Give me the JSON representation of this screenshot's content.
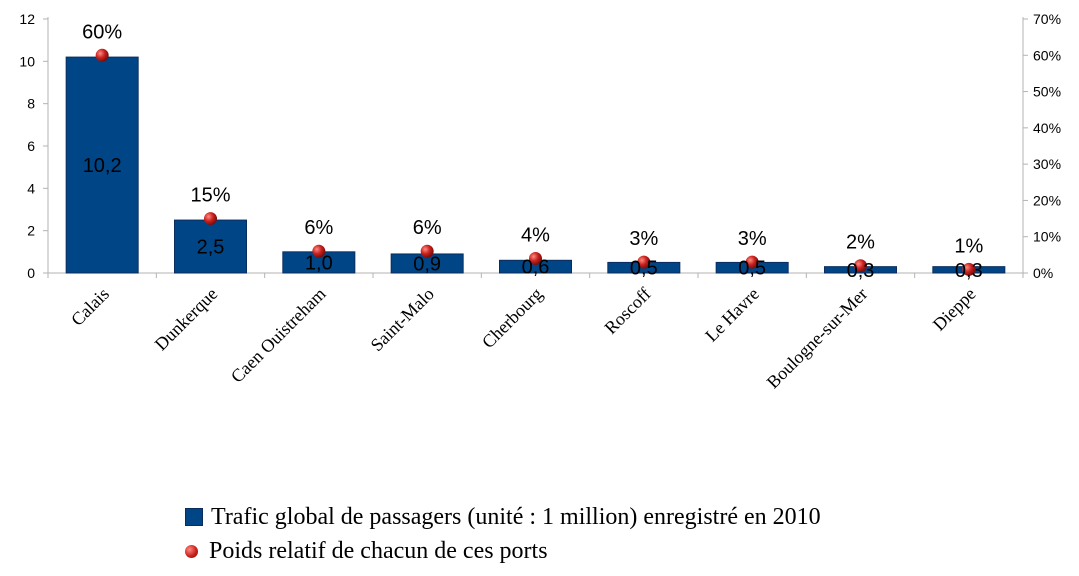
{
  "chart_data": {
    "type": "bar",
    "categories": [
      "Calais",
      "Dunkerque",
      "Caen Ouistreham",
      "Saint-Malo",
      "Cherbourg",
      "Roscoff",
      "Le Havre",
      "Boulogne-sur-Mer",
      "Dieppe"
    ],
    "series": [
      {
        "name": "Trafic global de passagers (unité : 1 million) enregistré en 2010",
        "type": "bar",
        "axis": "left",
        "values": [
          10.2,
          2.5,
          1.0,
          0.9,
          0.6,
          0.5,
          0.5,
          0.3,
          0.3
        ],
        "labels": [
          "10,2",
          "2,5",
          "1,0",
          "0,9",
          "0,6",
          "0,5",
          "0,5",
          "0,3",
          "0,3"
        ],
        "color": "#004586"
      },
      {
        "name": "Poids relatif de chacun de ces ports",
        "type": "scatter",
        "axis": "right",
        "values": [
          60,
          15,
          6,
          6,
          4,
          3,
          3,
          2,
          1
        ],
        "labels": [
          "60%",
          "15%",
          "6%",
          "6%",
          "4%",
          "3%",
          "3%",
          "2%",
          "1%"
        ],
        "color": "#c9211e"
      }
    ],
    "y_left": {
      "ylim": [
        0,
        12
      ],
      "ticks": [
        "0",
        "2",
        "4",
        "6",
        "8",
        "10",
        "12"
      ]
    },
    "y_right": {
      "ylim": [
        0,
        70
      ],
      "ticks": [
        "0%",
        "10%",
        "20%",
        "30%",
        "40%",
        "50%",
        "60%",
        "70%"
      ]
    },
    "grid": false,
    "legend_position": "bottom"
  }
}
